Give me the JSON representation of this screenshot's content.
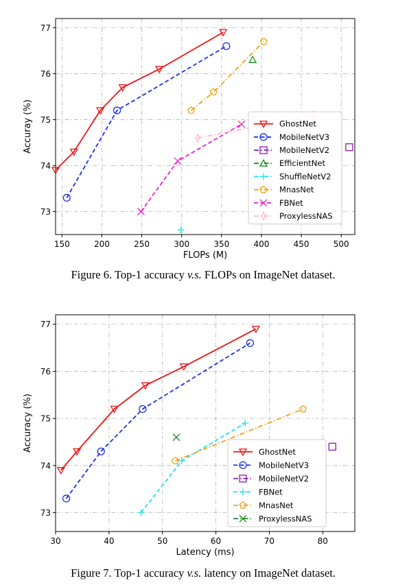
{
  "figures": [
    {
      "caption": {
        "label": "Figure 6.",
        "pre": " Top-1 accuracy ",
        "vs": "v.s.",
        "post": " FLOPs on ImageNet dataset."
      },
      "chart_data": {
        "type": "line",
        "xlabel": "FLOPs (M)",
        "ylabel": "Accuray (%)",
        "xlim": [
          142,
          517
        ],
        "ylim": [
          72.5,
          77.2
        ],
        "xticks": [
          150,
          200,
          250,
          300,
          350,
          400,
          450,
          500
        ],
        "yticks": [
          73,
          74,
          75,
          76,
          77
        ],
        "grid": true,
        "legend_position": "lower-right",
        "series": [
          {
            "name": "GhostNet",
            "color": "#ee1111",
            "marker": "triangle-down",
            "line": "solid",
            "x": [
              142,
              165,
              198,
              226,
              272,
              352
            ],
            "y": [
              73.9,
              74.3,
              75.2,
              75.7,
              76.1,
              76.9
            ]
          },
          {
            "name": "MobileNetV3",
            "color": "#1a2ee6",
            "marker": "circle",
            "line": "dashed",
            "x": [
              156,
              219,
              356
            ],
            "y": [
              73.3,
              75.2,
              76.6
            ]
          },
          {
            "name": "MobileNetV2",
            "color": "#8a1ab0",
            "marker": "square",
            "line": "dashdot",
            "x": [
              510
            ],
            "y": [
              74.4
            ]
          },
          {
            "name": "EfficientNet",
            "color": "#1a8c1a",
            "marker": "triangle-up",
            "line": "dashdot",
            "x": [
              389
            ],
            "y": [
              76.3
            ]
          },
          {
            "name": "ShuffleNetV2",
            "color": "#22e0ee",
            "marker": "plus",
            "line": "dashdot",
            "x": [
              299
            ],
            "y": [
              72.6
            ]
          },
          {
            "name": "MnasNet",
            "color": "#f0a010",
            "marker": "pentagon",
            "line": "dashdot",
            "x": [
              312,
              340,
              403
            ],
            "y": [
              75.2,
              75.6,
              76.7
            ]
          },
          {
            "name": "FBNet",
            "color": "#ee22cc",
            "marker": "x",
            "line": "dashed",
            "x": [
              249,
              295,
              375
            ],
            "y": [
              73.0,
              74.1,
              74.9
            ]
          },
          {
            "name": "ProxylessNAS",
            "color": "#ffb6c8",
            "marker": "thin-diamond",
            "line": "dashdot",
            "x": [
              320,
              465
            ],
            "y": [
              74.6,
              75.1
            ]
          }
        ]
      }
    },
    {
      "caption": {
        "label": "Figure 7.",
        "pre": " Top-1 accuracy ",
        "vs": "v.s.",
        "post": " latency on ImageNet dataset."
      },
      "chart_data": {
        "type": "line",
        "xlabel": "Latency (ms)",
        "ylabel": "Accuracy (%)",
        "xlim": [
          30,
          86
        ],
        "ylim": [
          72.6,
          77.2
        ],
        "xticks": [
          30,
          40,
          50,
          60,
          70,
          80
        ],
        "yticks": [
          73,
          74,
          75,
          76,
          77
        ],
        "grid": true,
        "legend_position": "lower-right",
        "series": [
          {
            "name": "GhostNet",
            "color": "#ee1111",
            "marker": "triangle-down",
            "line": "solid",
            "x": [
              31.0,
              34.0,
              41.0,
              46.8,
              54.0,
              67.5
            ],
            "y": [
              73.9,
              74.3,
              75.2,
              75.7,
              76.1,
              76.9
            ]
          },
          {
            "name": "MobileNetV3",
            "color": "#1a2ee6",
            "marker": "circle",
            "line": "dashed",
            "x": [
              32.0,
              38.5,
              46.3,
              66.4
            ],
            "y": [
              73.3,
              74.3,
              75.2,
              76.6
            ]
          },
          {
            "name": "MobileNetV2",
            "color": "#8a1ab0",
            "marker": "square",
            "line": "dashdot",
            "x": [
              81.8
            ],
            "y": [
              74.4
            ]
          },
          {
            "name": "FBNet",
            "color": "#22e0ee",
            "marker": "plus",
            "line": "dashed",
            "x": [
              46.0,
              53.6,
              65.5
            ],
            "y": [
              73.0,
              74.1,
              74.9
            ]
          },
          {
            "name": "MnasNet",
            "color": "#f0a010",
            "marker": "pentagon",
            "line": "dashdot",
            "x": [
              52.4,
              76.3
            ],
            "y": [
              74.1,
              75.2
            ]
          },
          {
            "name": "ProxylessNAS",
            "color": "#1a8c1a",
            "marker": "x",
            "line": "dashdot",
            "x": [
              52.6
            ],
            "y": [
              74.6
            ]
          }
        ]
      }
    }
  ]
}
